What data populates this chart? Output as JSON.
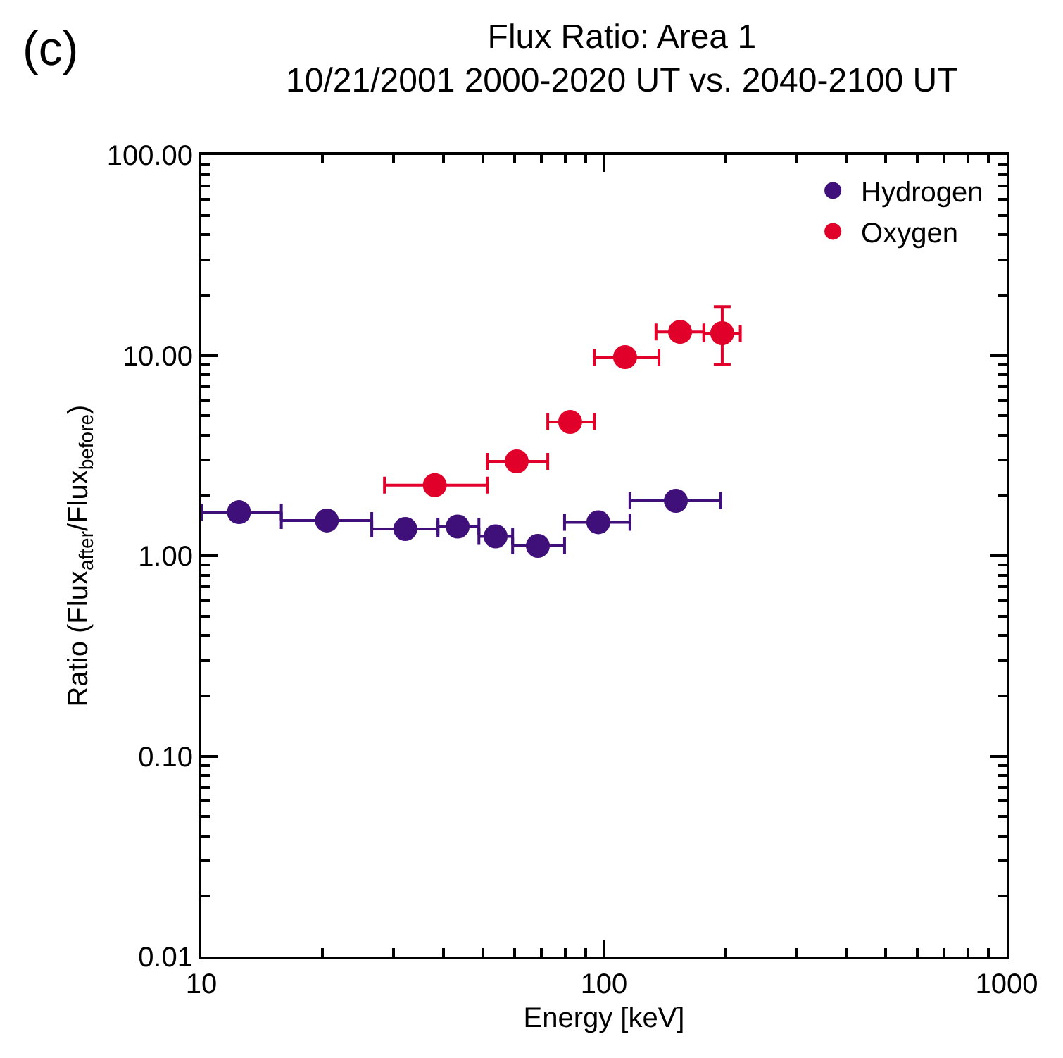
{
  "chart_data": {
    "type": "scatter",
    "title": "Flux Ratio: Area 1",
    "subtitle": "10/21/2001 2000-2020 UT vs. 2040-2100 UT",
    "xlabel": "Energy [keV]",
    "ylabel": "Ratio (Flux$_{after}$/Flux$_{before}$)",
    "annotations": [
      "(c)"
    ],
    "log": "xy",
    "xlim": [
      10,
      1000
    ],
    "ylim": [
      0.01,
      100
    ],
    "xticks": [
      10,
      100,
      1000
    ],
    "yticks": [
      {
        "value": 0.01,
        "label": "0.01"
      },
      {
        "value": 0.1,
        "label": "0.10"
      },
      {
        "value": 1,
        "label": "1.00"
      },
      {
        "value": 10,
        "label": "10.00"
      },
      {
        "value": 100,
        "label": "100.00"
      }
    ],
    "legend": "top right",
    "marker": "circle",
    "series": [
      {
        "name": "Hydrogen",
        "color": "#3f0f7a",
        "x": [
          12.4,
          20.5,
          32.1,
          43.3,
          53.8,
          68.5,
          96.8,
          150.8
        ],
        "values": [
          1.65,
          1.5,
          1.36,
          1.4,
          1.25,
          1.12,
          1.47,
          1.88
        ],
        "xerrors": [
          [
            10,
            15.8
          ],
          [
            15.8,
            26.5
          ],
          [
            26.5,
            38.7
          ],
          [
            38.7,
            48.9
          ],
          [
            48.9,
            59.3
          ],
          [
            59.3,
            79.8
          ],
          [
            79.8,
            116
          ],
          [
            116,
            195
          ]
        ]
      },
      {
        "name": "Oxygen",
        "color": "#e0002a",
        "x": [
          38.0,
          60.7,
          82.4,
          112.8,
          154.5,
          196.6
        ],
        "values": [
          2.25,
          2.96,
          4.65,
          9.8,
          13.1,
          12.9
        ],
        "xerrors": [
          [
            28.5,
            51.3
          ],
          [
            51.3,
            72.5
          ],
          [
            72.5,
            94.6
          ],
          [
            94.6,
            136.9
          ],
          [
            134.6,
            177
          ],
          [
            177,
            218
          ]
        ],
        "errors": [
          null,
          null,
          null,
          null,
          null,
          [
            9.0,
            17.5
          ]
        ]
      }
    ]
  }
}
